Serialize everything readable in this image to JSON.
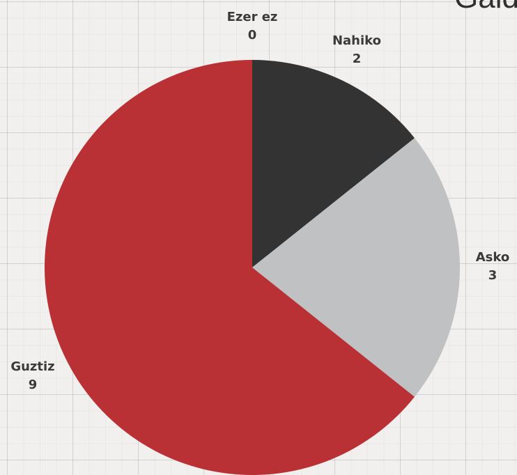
{
  "title": "Gald",
  "chart_data": {
    "type": "pie",
    "title": "Gald",
    "categories": [
      "Ezer ez",
      "Nahiko",
      "Asko",
      "Guztiz"
    ],
    "values": [
      0,
      2,
      3,
      9
    ],
    "colors": [
      "#4a4a4a",
      "#333333",
      "#bfc1c2",
      "#b93135"
    ],
    "start_angle_deg": 0,
    "direction": "clockwise",
    "legend": "none",
    "data_labels": "outside, category name above value"
  }
}
